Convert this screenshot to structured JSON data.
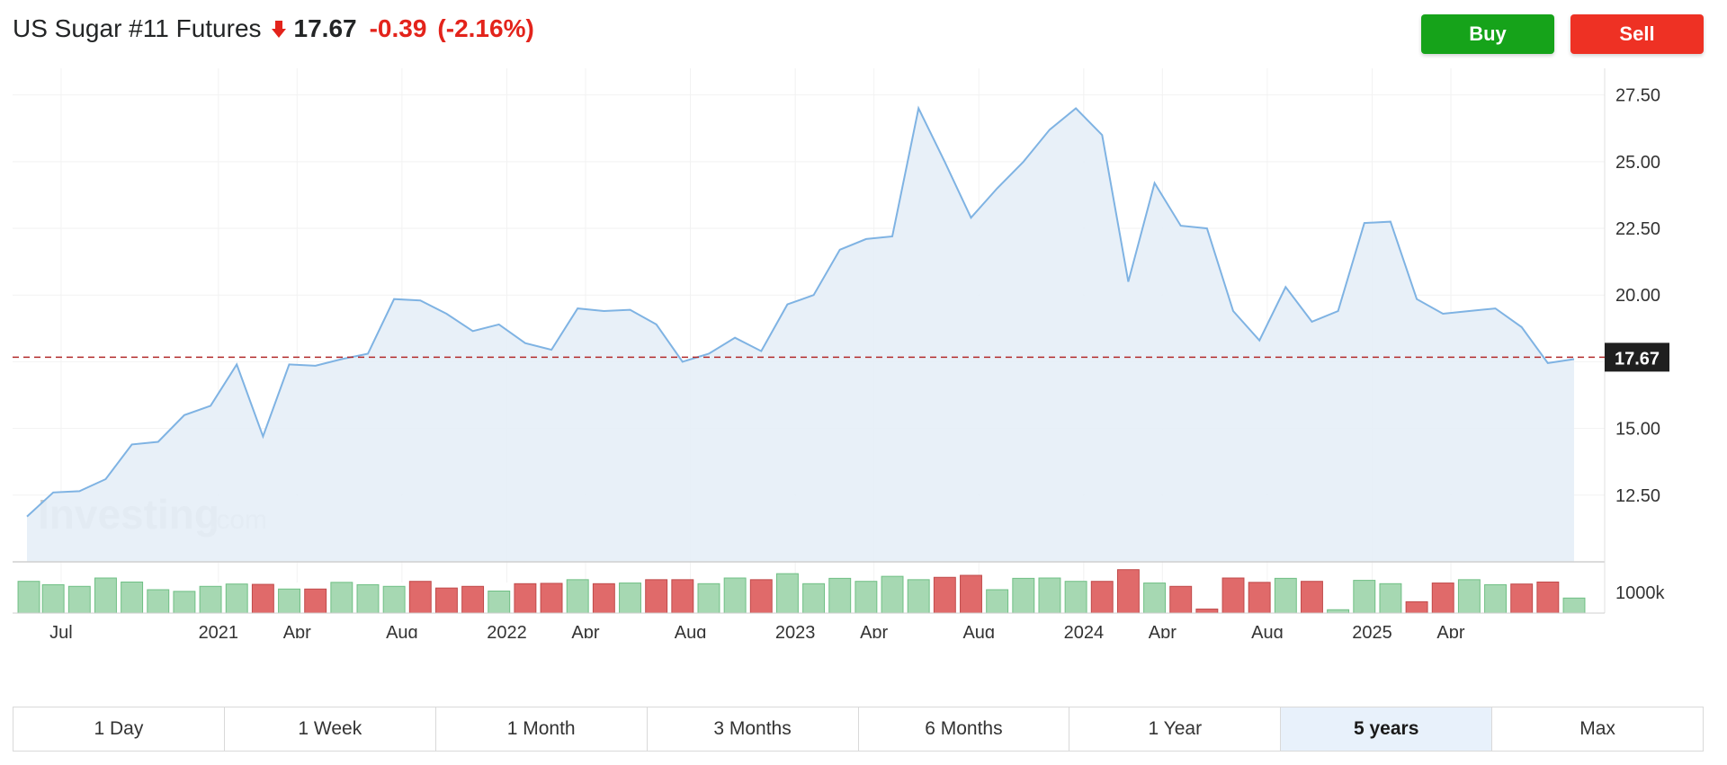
{
  "header": {
    "title": "US Sugar #11 Futures",
    "price": "17.67",
    "change": "-0.39",
    "change_pct": "(-2.16%)",
    "direction_icon": "down-arrow-icon"
  },
  "actions": {
    "buy_label": "Buy",
    "sell_label": "Sell"
  },
  "colors": {
    "line": "#7fb3e3",
    "area": "#e6eef7",
    "up": "#a6d8b2",
    "down": "#e06a6a",
    "ref": "#b22b2b",
    "buy": "#16a31a",
    "sell": "#ee3124",
    "badge": "#1f1f1f"
  },
  "watermark": {
    "brand": "Investing",
    "suffix": ".com"
  },
  "chart_data": {
    "type": "area",
    "ylim": [
      10,
      28.5
    ],
    "y_ticks": [
      12.5,
      15.0,
      17.5,
      20.0,
      22.5,
      25.0,
      27.5
    ],
    "y_tick_labels": [
      "12.50",
      "15.00",
      "",
      "20.00",
      "22.50",
      "25.00",
      "27.50"
    ],
    "current_value": 17.67,
    "current_label": "17.67",
    "x_labels": [
      {
        "label": "Jul",
        "index": 1.3
      },
      {
        "label": "2021",
        "index": 7.3
      },
      {
        "label": "Apr",
        "index": 10.3
      },
      {
        "label": "Aug",
        "index": 14.3
      },
      {
        "label": "2022",
        "index": 18.3
      },
      {
        "label": "Apr",
        "index": 21.3
      },
      {
        "label": "Aug",
        "index": 25.3
      },
      {
        "label": "2023",
        "index": 29.3
      },
      {
        "label": "Apr",
        "index": 32.3
      },
      {
        "label": "Aug",
        "index": 36.3
      },
      {
        "label": "2024",
        "index": 40.3
      },
      {
        "label": "Apr",
        "index": 43.3
      },
      {
        "label": "Aug",
        "index": 47.3
      },
      {
        "label": "2025",
        "index": 51.3
      },
      {
        "label": "Apr",
        "index": 54.3
      }
    ],
    "values": [
      11.7,
      12.6,
      12.65,
      13.1,
      14.4,
      14.5,
      15.5,
      15.85,
      17.4,
      14.7,
      17.4,
      17.35,
      17.6,
      17.8,
      19.85,
      19.8,
      19.3,
      18.65,
      18.9,
      18.2,
      17.95,
      19.5,
      19.4,
      19.45,
      18.9,
      17.5,
      17.8,
      18.4,
      17.9,
      19.65,
      20.0,
      21.7,
      22.1,
      22.2,
      27.0,
      25.0,
      22.9,
      24.0,
      25.0,
      26.2,
      27.0,
      26.0,
      20.5,
      24.2,
      22.6,
      22.5,
      19.4,
      18.3,
      20.3,
      19.0,
      19.4,
      22.7,
      22.75,
      19.85,
      19.3,
      19.4,
      19.5,
      18.8,
      17.45,
      17.6
    ],
    "volume": {
      "label": "1000k",
      "ylim": [
        0,
        1.4
      ],
      "values": [
        0.95,
        0.85,
        0.8,
        1.05,
        0.93,
        0.7,
        0.65,
        0.8,
        0.87,
        0.86,
        0.72,
        0.72,
        0.92,
        0.85,
        0.8,
        0.95,
        0.75,
        0.8,
        0.66,
        0.88,
        0.89,
        1.0,
        0.88,
        0.9,
        1.0,
        1.0,
        0.88,
        1.05,
        1.0,
        1.18,
        0.88,
        1.04,
        0.95,
        1.1,
        1.0,
        1.07,
        1.13,
        0.7,
        1.04,
        1.05,
        0.95,
        0.95,
        1.3,
        0.9,
        0.8,
        0.12,
        1.05,
        0.92,
        1.04,
        0.95,
        0.1,
        0.98,
        0.88,
        0.34,
        0.9,
        1.0,
        0.85,
        0.87,
        0.93,
        0.45
      ],
      "up": [
        true,
        true,
        true,
        true,
        true,
        true,
        true,
        true,
        true,
        false,
        true,
        false,
        true,
        true,
        true,
        false,
        false,
        false,
        true,
        false,
        false,
        true,
        false,
        true,
        false,
        false,
        true,
        true,
        false,
        true,
        true,
        true,
        true,
        true,
        true,
        false,
        false,
        true,
        true,
        true,
        true,
        false,
        false,
        true,
        false,
        false,
        false,
        false,
        true,
        false,
        true,
        true,
        true,
        false,
        false,
        true,
        true,
        false,
        false,
        true
      ]
    }
  },
  "ranges": [
    {
      "label": "1 Day",
      "active": false
    },
    {
      "label": "1 Week",
      "active": false
    },
    {
      "label": "1 Month",
      "active": false
    },
    {
      "label": "3 Months",
      "active": false
    },
    {
      "label": "6 Months",
      "active": false
    },
    {
      "label": "1 Year",
      "active": false
    },
    {
      "label": "5 years",
      "active": true
    },
    {
      "label": "Max",
      "active": false
    }
  ]
}
